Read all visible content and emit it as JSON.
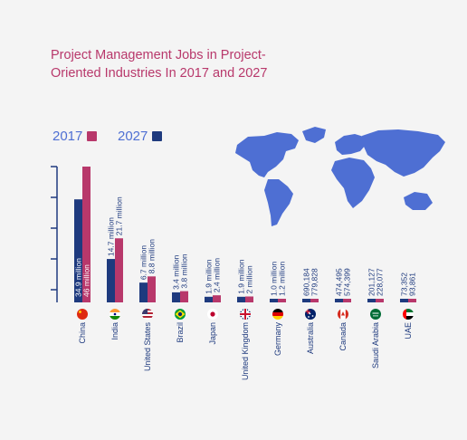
{
  "title": "Project Management Jobs in Project- Oriented Industries In 2017 and 2027",
  "colors": {
    "y2017": "#b8386b",
    "y2027": "#1e3a7e",
    "legend_text": "#4e6fd3",
    "map": "#4e6fd3",
    "axis": "#1e3a7e"
  },
  "chart_data": {
    "type": "bar",
    "title": "Project Management Jobs in Project- Oriented Industries In 2017 and 2027",
    "unit": "jobs",
    "legend": [
      {
        "label": "2017",
        "color": "#b8386b"
      },
      {
        "label": "2027",
        "color": "#1e3a7e"
      }
    ],
    "legend_placement": "top-left",
    "grid": false,
    "categories": [
      "China",
      "India",
      "United States",
      "Brazil",
      "Japan",
      "United Kingdom",
      "Germany",
      "Australia",
      "Canada",
      "Saudi Arabia",
      "UAE"
    ],
    "series": [
      {
        "name": "2017",
        "values": [
          46000000,
          21700000,
          8800000,
          3800000,
          2400000,
          2000000,
          1200000,
          779828,
          574399,
          228077,
          93861
        ]
      },
      {
        "name": "2027",
        "values": [
          34900000,
          14700000,
          6700000,
          3400000,
          1900000,
          1900000,
          1000000,
          690184,
          474495,
          201127,
          73352
        ]
      }
    ],
    "labels_2027": [
      "34.9 million",
      "14.7 million",
      "6.7 million",
      "3.4 million",
      "1.9 million",
      "1.9 million",
      "1.0 million",
      "690,184",
      "474,495",
      "201,127",
      "73,352"
    ],
    "labels_2017": [
      "46 million",
      "21.7 million",
      "8.8 million",
      "3.8 million",
      "2.4 million",
      "2 million",
      "1.2 million",
      "779,828",
      "574,399",
      "228,077",
      "93,861"
    ],
    "flag_icons": [
      "china-flag-icon",
      "india-flag-icon",
      "usa-flag-icon",
      "brazil-flag-icon",
      "japan-flag-icon",
      "uk-flag-icon",
      "germany-flag-icon",
      "australia-flag-icon",
      "canada-flag-icon",
      "saudi-arabia-flag-icon",
      "uae-flag-icon"
    ]
  },
  "map_icon": "world-map-icon"
}
